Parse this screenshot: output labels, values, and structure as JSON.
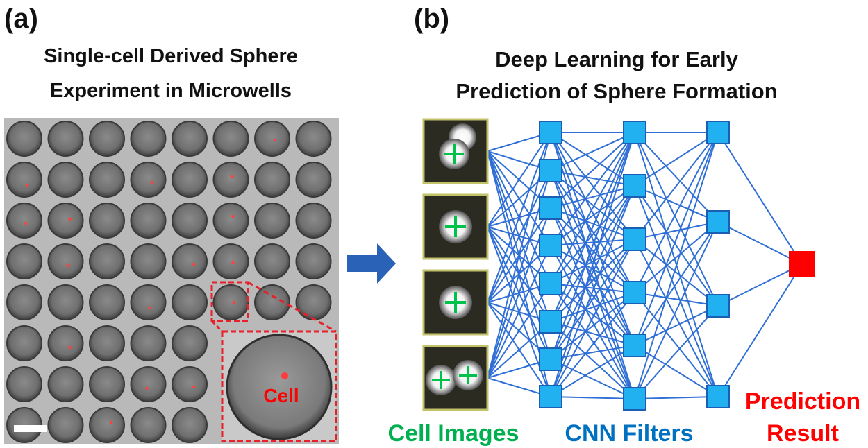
{
  "panel_a": {
    "tag": "(a)",
    "title_line1": "Single-cell Derived Sphere",
    "title_line2": "Experiment in Microwells",
    "inset_label": "Cell",
    "grid": {
      "rows": 8,
      "cols": 8
    }
  },
  "panel_b": {
    "tag": "(b)",
    "title_line1": "Deep Learning for Early",
    "title_line2": "Prediction of Sphere Formation",
    "label_cell_images": "Cell Images",
    "label_cnn_filters": "CNN Filters",
    "label_prediction_line1": "Prediction",
    "label_prediction_line2": "Result",
    "network": {
      "layer_sizes": [
        8,
        6,
        4,
        1
      ]
    }
  },
  "colors": {
    "node_fill": "#21b0f0",
    "node_stroke": "#1a5fb4",
    "edge": "#2f6fd6",
    "output_node": "#ff0000",
    "arrow": "#2a62b8",
    "green_label": "#00b050",
    "blue_label": "#0070c0",
    "red_label": "#ff0000",
    "inset_frame": "#e8202a"
  }
}
